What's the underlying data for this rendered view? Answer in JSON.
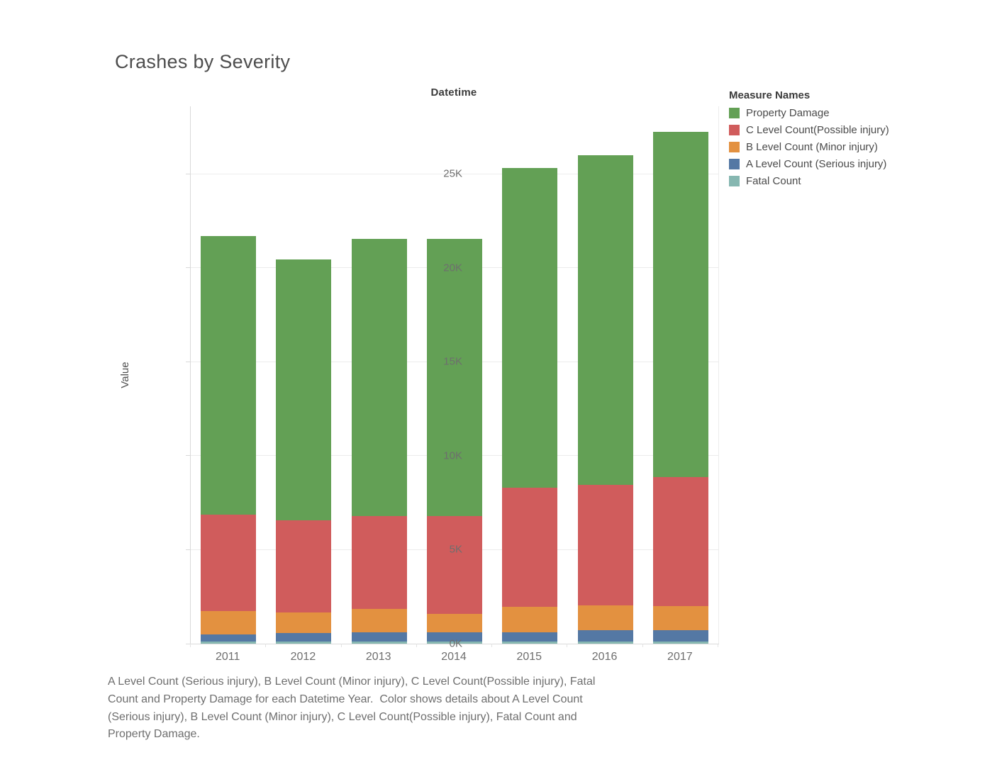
{
  "title": "Crashes by Severity",
  "axes": {
    "x_title": "Datetime",
    "y_title": "Value"
  },
  "legend": {
    "title": "Measure Names",
    "position": "right",
    "items": [
      {
        "label": "Property Damage",
        "color": "#63a055"
      },
      {
        "label": "C Level Count(Possible injury)",
        "color": "#d05c5c"
      },
      {
        "label": "B Level Count (Minor injury)",
        "color": "#e39140"
      },
      {
        "label": "A Level Count (Serious injury)",
        "color": "#5478a4"
      },
      {
        "label": "Fatal Count",
        "color": "#86b7b1"
      }
    ]
  },
  "chart_data": {
    "type": "bar",
    "stacked": true,
    "title": "Crashes by Severity",
    "xlabel": "Datetime",
    "ylabel": "Value",
    "grid": true,
    "legend_position": "right",
    "categories": [
      "2011",
      "2012",
      "2013",
      "2014",
      "2015",
      "2016",
      "2017"
    ],
    "series": [
      {
        "name": "Fatal Count",
        "color": "#86b7b1",
        "values": [
          100,
          100,
          100,
          100,
          100,
          100,
          100
        ]
      },
      {
        "name": "A Level Count (Serious injury)",
        "color": "#5478a4",
        "values": [
          400,
          450,
          500,
          500,
          500,
          600,
          600
        ]
      },
      {
        "name": "B Level Count (Minor injury)",
        "color": "#e39140",
        "values": [
          1250,
          1100,
          1250,
          1000,
          1350,
          1350,
          1300
        ]
      },
      {
        "name": "C Level Count(Possible injury)",
        "color": "#d05c5c",
        "values": [
          5100,
          4900,
          4950,
          5200,
          6350,
          6400,
          6850
        ]
      },
      {
        "name": "Property Damage",
        "color": "#63a055",
        "values": [
          14850,
          13900,
          14750,
          14750,
          17000,
          17550,
          18400
        ]
      }
    ],
    "totals": [
      21700,
      20450,
      21550,
      21550,
      25300,
      26000,
      27250
    ],
    "ylim": [
      0,
      28600
    ],
    "yticks": [
      {
        "value": 0,
        "label": "0K"
      },
      {
        "value": 5000,
        "label": "5K"
      },
      {
        "value": 10000,
        "label": "10K"
      },
      {
        "value": 15000,
        "label": "15K"
      },
      {
        "value": 20000,
        "label": "20K"
      },
      {
        "value": 25000,
        "label": "25K"
      }
    ]
  },
  "caption": "A Level Count (Serious injury), B Level Count (Minor injury), C Level Count(Possible injury), Fatal Count and Property Damage for each Datetime Year.  Color shows details about A Level Count (Serious injury), B Level Count (Minor injury), C Level Count(Possible injury), Fatal Count and Property Damage."
}
